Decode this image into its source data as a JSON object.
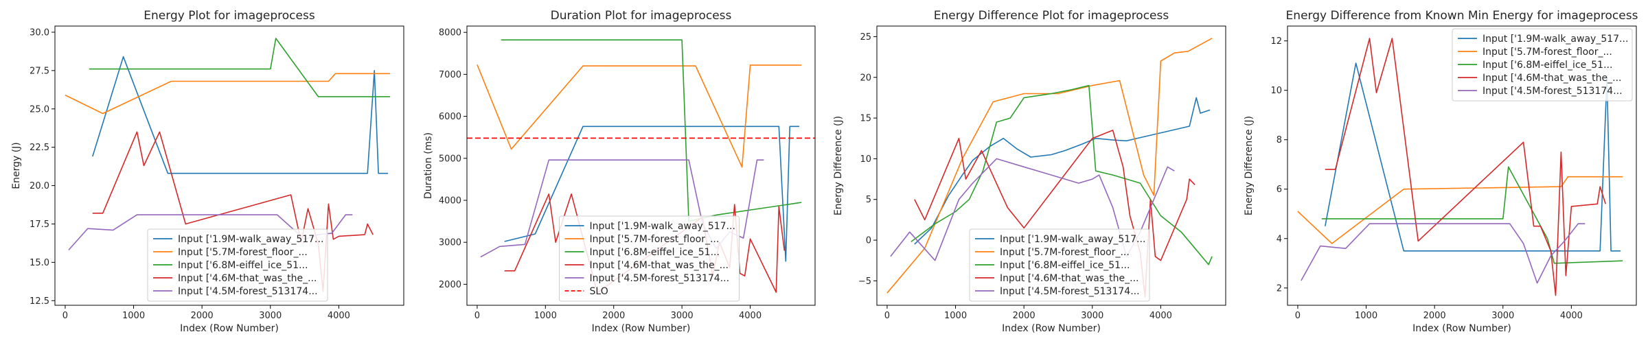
{
  "colors": {
    "blue": "#1f77b4",
    "orange": "#ff7f0e",
    "green": "#2ca02c",
    "red": "#d62728",
    "purple": "#9467bd",
    "slo": "#ff0000"
  },
  "chart_data": [
    {
      "type": "line",
      "title": "Energy Plot for imageprocess",
      "xlabel": "Index (Row Number)",
      "ylabel": "Energy (J)",
      "xlim": [
        -150,
        4950
      ],
      "ylim": [
        12.2,
        30.4
      ],
      "xticks": [
        0,
        1000,
        2000,
        3000,
        4000
      ],
      "yticks": [
        12.5,
        15.0,
        17.5,
        20.0,
        22.5,
        25.0,
        27.5,
        30.0
      ],
      "ytick_labels": [
        "12.5",
        "15.0",
        "17.5",
        "20.0",
        "22.5",
        "25.0",
        "27.5",
        "30.0"
      ],
      "legend": "lower-center",
      "series": [
        {
          "name": "Input ['1.9M-walk_away_517...",
          "color": "blue",
          "x": [
            400,
            850,
            1500,
            4420,
            4520,
            4580,
            4720
          ],
          "y": [
            21.9,
            28.4,
            20.8,
            20.8,
            27.5,
            20.8,
            20.8
          ]
        },
        {
          "name": "Input ['5.7M-forest_floor_...",
          "color": "orange",
          "x": [
            0,
            550,
            1550,
            3850,
            3950,
            4750
          ],
          "y": [
            25.9,
            24.7,
            26.8,
            26.8,
            27.3,
            27.3
          ]
        },
        {
          "name": "Input ['6.8M-eiffel_ice_51...",
          "color": "green",
          "x": [
            350,
            3000,
            3080,
            3700,
            4750
          ],
          "y": [
            27.6,
            27.6,
            29.6,
            25.8,
            25.8
          ]
        },
        {
          "name": "Input ['4.6M-that_was_the_...",
          "color": "red",
          "x": [
            400,
            550,
            1050,
            1150,
            1380,
            1760,
            3300,
            3450,
            3550,
            3700,
            3770,
            3850,
            3920,
            4000,
            4380,
            4420,
            4500
          ],
          "y": [
            18.2,
            18.2,
            23.5,
            21.3,
            23.5,
            17.5,
            19.4,
            16.3,
            18.5,
            16.2,
            13.1,
            18.8,
            16.5,
            16.7,
            16.8,
            17.5,
            16.8
          ]
        },
        {
          "name": "Input ['4.5M-forest_513174...",
          "color": "purple",
          "x": [
            50,
            330,
            700,
            1050,
            3100,
            3300,
            3500,
            3700,
            3900,
            4100,
            4200
          ],
          "y": [
            15.8,
            17.2,
            17.1,
            18.1,
            18.1,
            17.3,
            16.5,
            16.8,
            16.9,
            18.1,
            18.1
          ]
        }
      ]
    },
    {
      "type": "line",
      "title": "Duration Plot for imageprocess",
      "xlabel": "Index (Row Number)",
      "ylabel": "Duration (ms)",
      "xlim": [
        -150,
        4950
      ],
      "ylim": [
        1500,
        8150
      ],
      "xticks": [
        0,
        1000,
        2000,
        3000,
        4000
      ],
      "yticks": [
        2000,
        3000,
        4000,
        5000,
        6000,
        7000,
        8000
      ],
      "ytick_labels": [
        "2000",
        "3000",
        "4000",
        "5000",
        "6000",
        "7000",
        "8000"
      ],
      "legend": "lower-center",
      "slo": 5480,
      "series": [
        {
          "name": "Input ['1.9M-walk_away_517...",
          "color": "blue",
          "x": [
            400,
            850,
            1550,
            4420,
            4520,
            4580,
            4720
          ],
          "y": [
            3020,
            3200,
            5760,
            5760,
            2550,
            5760,
            5760
          ]
        },
        {
          "name": "Input ['5.7M-forest_floor_...",
          "color": "orange",
          "x": [
            0,
            500,
            1550,
            3200,
            3880,
            4000,
            4750
          ],
          "y": [
            7230,
            5220,
            7200,
            7200,
            4790,
            7220,
            7220
          ]
        },
        {
          "name": "Input ['6.8M-eiffel_ice_51...",
          "color": "green",
          "x": [
            350,
            3000,
            3100,
            3500,
            4750
          ],
          "y": [
            7820,
            7820,
            3500,
            3650,
            3950
          ]
        },
        {
          "name": "Input ['4.6M-that_was_the_...",
          "color": "red",
          "x": [
            400,
            550,
            1050,
            1150,
            1380,
            1760,
            3300,
            3450,
            3550,
            3700,
            3770,
            3850,
            3920,
            4000,
            4380,
            4420,
            4500
          ],
          "y": [
            2320,
            2320,
            4150,
            3000,
            4150,
            1800,
            3600,
            2200,
            3000,
            2400,
            3900,
            2260,
            2200,
            3080,
            1810,
            3850,
            2800
          ]
        },
        {
          "name": "Input ['4.5M-forest_513174...",
          "color": "purple",
          "x": [
            50,
            330,
            700,
            1050,
            3100,
            3300,
            3500,
            3700,
            3900,
            4100,
            4200
          ],
          "y": [
            2650,
            2900,
            2950,
            4960,
            4960,
            3450,
            2850,
            3250,
            3100,
            4960,
            4960
          ]
        }
      ]
    },
    {
      "type": "line",
      "title": "Energy Difference Plot for imageprocess",
      "xlabel": "Index (Row Number)",
      "ylabel": "Energy Difference (J)",
      "xlim": [
        -150,
        4950
      ],
      "ylim": [
        -8,
        26.3
      ],
      "xticks": [
        0,
        1000,
        2000,
        3000,
        4000
      ],
      "yticks": [
        -5,
        0,
        5,
        10,
        15,
        20,
        25
      ],
      "ytick_labels": [
        "−5",
        "0",
        "5",
        "10",
        "15",
        "20",
        "25"
      ],
      "legend": "lower-center",
      "series": [
        {
          "name": "Input ['1.9M-walk_away_517...",
          "color": "blue",
          "x": [
            400,
            650,
            900,
            1100,
            1250,
            1500,
            1700,
            1900,
            2100,
            2400,
            2600,
            2850,
            3050,
            3300,
            3500,
            3700,
            4420,
            4520,
            4580,
            4720
          ],
          "y": [
            -0.5,
            1.5,
            5.5,
            8.0,
            9.8,
            11.5,
            12.5,
            11.2,
            10.2,
            10.5,
            11.0,
            11.8,
            12.5,
            12.3,
            12.2,
            12.6,
            14.0,
            17.5,
            15.6,
            16.0
          ]
        },
        {
          "name": "Input ['5.7M-forest_floor_...",
          "color": "orange",
          "x": [
            0,
            550,
            1100,
            1550,
            2000,
            2500,
            3000,
            3400,
            3750,
            3900,
            4000,
            4200,
            4400,
            4750
          ],
          "y": [
            -6.5,
            -1.0,
            10.0,
            17.0,
            18.0,
            18.0,
            19.0,
            19.6,
            8.0,
            5.5,
            22.0,
            23.0,
            23.2,
            24.8
          ]
        },
        {
          "name": "Input ['6.8M-eiffel_ice_51...",
          "color": "green",
          "x": [
            350,
            700,
            1000,
            1200,
            1400,
            1600,
            1800,
            2000,
            2400,
            2700,
            2950,
            3050,
            3300,
            3700,
            4000,
            4300,
            4700,
            4750
          ],
          "y": [
            -0.2,
            2.0,
            3.5,
            5.0,
            8.5,
            14.5,
            15.0,
            17.5,
            18.0,
            18.5,
            19.0,
            8.5,
            8.0,
            7.0,
            3.0,
            1.0,
            -3.0,
            -2.0
          ]
        },
        {
          "name": "Input ['4.6M-that_was_the_...",
          "color": "red",
          "x": [
            400,
            550,
            1050,
            1150,
            1380,
            1760,
            2000,
            2500,
            3000,
            3300,
            3450,
            3550,
            3700,
            3770,
            3850,
            3920,
            4000,
            4380,
            4420,
            4500
          ],
          "y": [
            5.0,
            2.5,
            12.5,
            7.5,
            11.0,
            4.0,
            1.5,
            7.0,
            12.5,
            13.5,
            9.0,
            3.0,
            -1.5,
            -7.0,
            5.0,
            -2.0,
            -2.5,
            5.0,
            7.5,
            6.8
          ]
        },
        {
          "name": "Input ['4.5M-forest_513174...",
          "color": "purple",
          "x": [
            50,
            330,
            700,
            1050,
            1250,
            1600,
            2000,
            2400,
            2800,
            3000,
            3100,
            3300,
            3500,
            3700,
            3900,
            4100,
            4200
          ],
          "y": [
            -2.0,
            1.0,
            -2.5,
            5.0,
            7.0,
            10.0,
            9.0,
            8.0,
            7.0,
            7.5,
            8.0,
            4.0,
            -2.0,
            1.0,
            5.0,
            9.0,
            8.5
          ]
        }
      ]
    },
    {
      "type": "line",
      "title": "Energy Difference from Known Min Energy for imageprocess",
      "xlabel": "Index (Row Number)",
      "ylabel": "Energy Difference (J)",
      "xlim": [
        -150,
        4950
      ],
      "ylim": [
        1.3,
        12.6
      ],
      "xticks": [
        0,
        1000,
        2000,
        3000,
        4000
      ],
      "yticks": [
        2,
        4,
        6,
        8,
        10,
        12
      ],
      "ytick_labels": [
        "2",
        "4",
        "6",
        "8",
        "10",
        "12"
      ],
      "legend": "upper-right",
      "series": [
        {
          "name": "Input ['1.9M-walk_away_517...",
          "color": "blue",
          "x": [
            400,
            850,
            1550,
            4420,
            4520,
            4580,
            4720
          ],
          "y": [
            4.5,
            11.1,
            3.5,
            3.5,
            10.5,
            3.5,
            3.5
          ]
        },
        {
          "name": "Input ['5.7M-forest_floor_...",
          "color": "orange",
          "x": [
            0,
            500,
            1550,
            3850,
            3950,
            4750
          ],
          "y": [
            5.1,
            3.8,
            6.0,
            6.1,
            6.5,
            6.5
          ]
        },
        {
          "name": "Input ['6.8M-eiffel_ice_51...",
          "color": "green",
          "x": [
            350,
            3000,
            3080,
            3650,
            3750,
            4750
          ],
          "y": [
            4.8,
            4.8,
            6.9,
            4.0,
            3.0,
            3.1
          ]
        },
        {
          "name": "Input ['4.6M-that_was_the_...",
          "color": "red",
          "x": [
            400,
            550,
            1050,
            1150,
            1380,
            1760,
            3300,
            3450,
            3550,
            3700,
            3770,
            3850,
            3920,
            4000,
            4380,
            4420,
            4500
          ],
          "y": [
            6.8,
            6.8,
            12.1,
            9.9,
            12.1,
            3.9,
            7.9,
            4.5,
            4.5,
            3.5,
            1.7,
            7.5,
            2.5,
            5.3,
            5.4,
            6.1,
            5.4
          ]
        },
        {
          "name": "Input ['4.5M-forest_513174...",
          "color": "purple",
          "x": [
            50,
            330,
            700,
            1050,
            3100,
            3300,
            3500,
            3700,
            3900,
            4100,
            4200
          ],
          "y": [
            2.3,
            3.7,
            3.6,
            4.6,
            4.6,
            3.8,
            2.2,
            3.3,
            3.9,
            4.6,
            4.6
          ]
        }
      ]
    }
  ]
}
